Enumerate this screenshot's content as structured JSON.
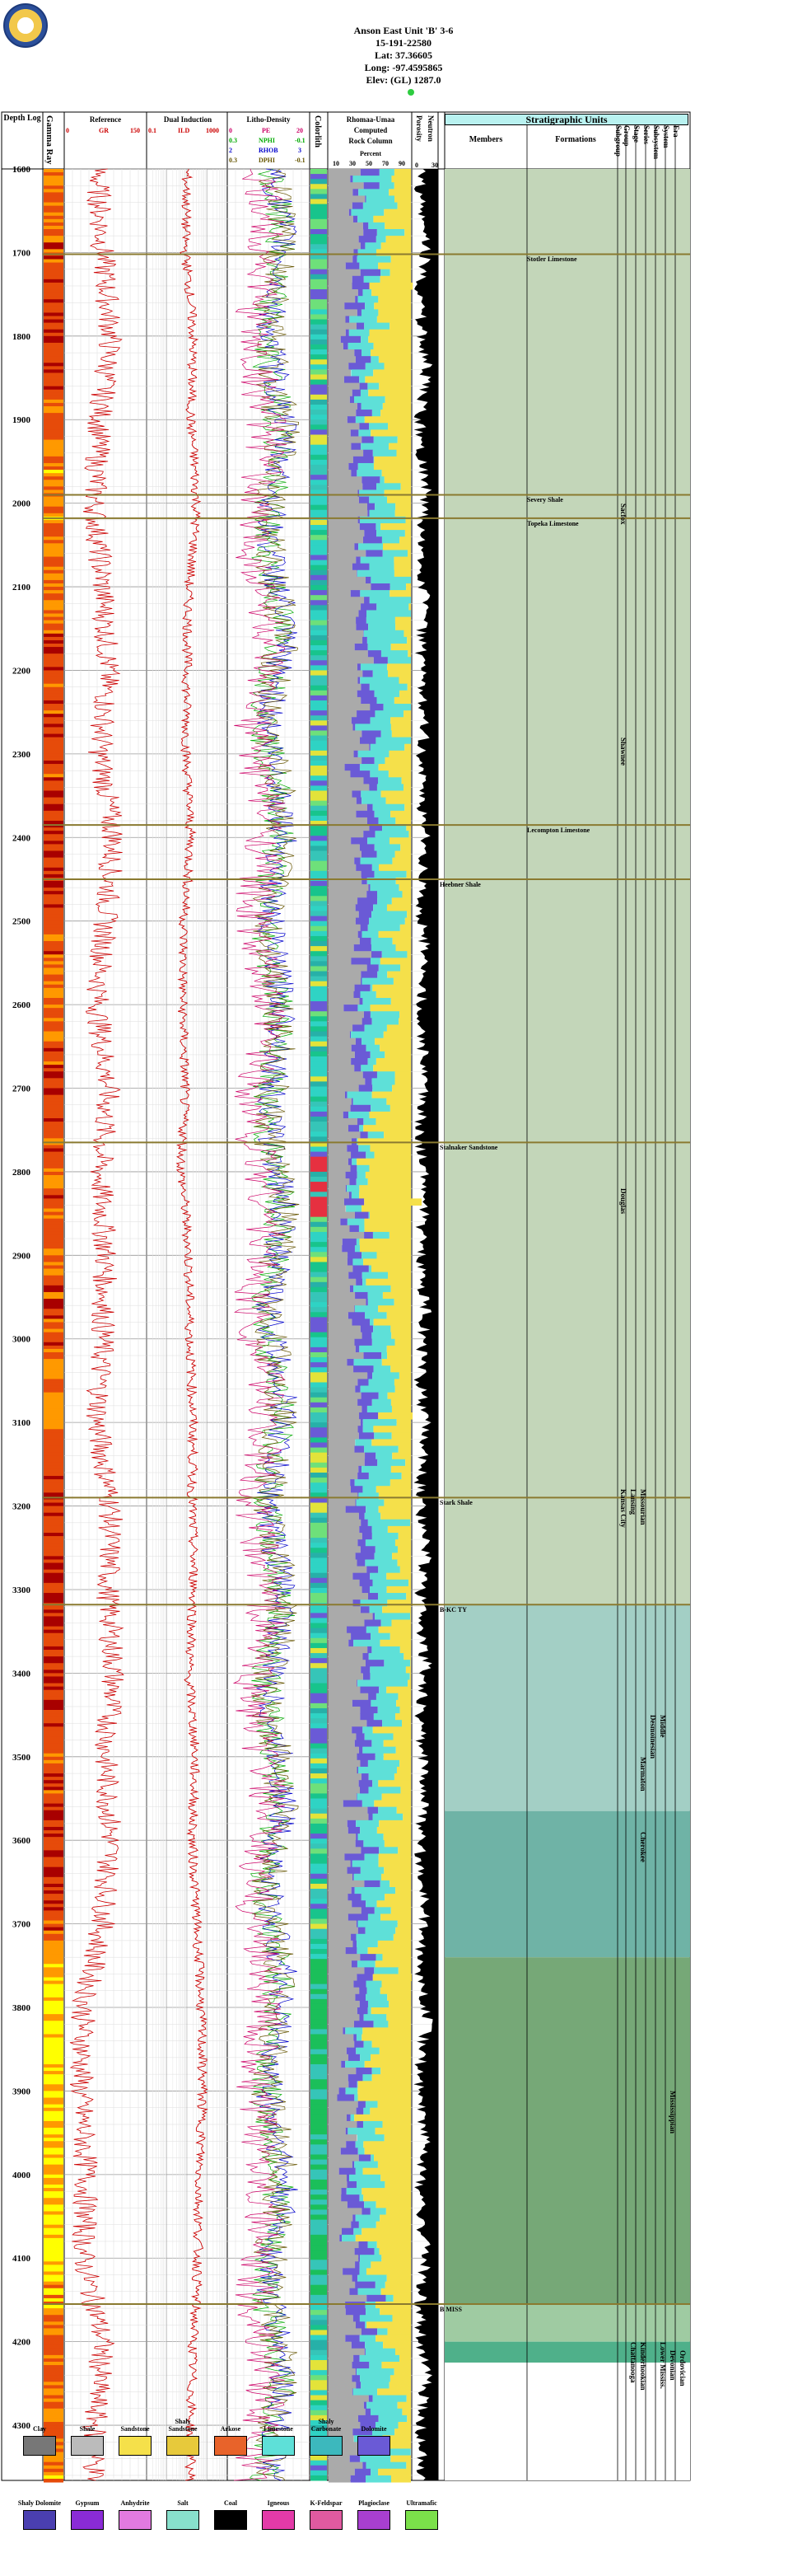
{
  "header": {
    "lines": [
      "Anson East Unit 'B' 3-6",
      "15-191-22580",
      "Lat: 37.36605",
      "Long: -97.4595865",
      "Elev: (GL) 1287.0"
    ]
  },
  "columns": {
    "depth": "Depth Log",
    "gamma": "Gamma Ray",
    "reference": "Reference",
    "gr_label": "GR",
    "gr_min": "0",
    "gr_max": "150",
    "dual_induction": "Dual Induction",
    "ild_label": "ILD",
    "ild_min": "0.1",
    "ild_max": "1000",
    "litho_density": "Litho-Density",
    "pe_label": "PE",
    "pe_min": "0",
    "pe_max": "20",
    "nphi_label": "NPHI",
    "nphi_min": "0.3",
    "nphi_max": "-0.1",
    "rhob_label": "RHOB",
    "rhob_min": "2",
    "rhob_max": "3",
    "dphi_label": "DPHI",
    "dphi_min": "0.3",
    "dphi_max": "-0.1",
    "colorlith": "Colorlith",
    "rhomaa": "Rhomaa-Umaa",
    "computed": "Computed",
    "rock_column": "Rock Column",
    "percent": "Percent",
    "pct_ticks": [
      "10",
      "30",
      "50",
      "70",
      "90"
    ],
    "porosity": "Porosity",
    "neutron": "Neutron",
    "porosity_ticks": [
      "0",
      "30"
    ],
    "strat_units": "Stratigraphic Units",
    "members": "Members",
    "formations": "Formations",
    "strat_cols": [
      "Subgroup",
      "Group",
      "Stage",
      "Series",
      "Subsystem",
      "System",
      "Era"
    ]
  },
  "formations": [
    {
      "name": "Stotler Limestone",
      "depth": 1702
    },
    {
      "name": "Severy Shale",
      "depth": 1990
    },
    {
      "name": "Topeka Limestone",
      "depth": 2018
    },
    {
      "name": "Lecompton Limestone",
      "depth": 2385
    },
    {
      "name": "Heebner Shale",
      "depth": 2450
    },
    {
      "name": "Stalnaker Sandstone",
      "depth": 2765
    },
    {
      "name": "Stark Shale",
      "depth": 3190
    },
    {
      "name": "B-KC TY",
      "depth": 3318
    },
    {
      "name": "B MISS",
      "depth": 4155
    }
  ],
  "strat_groups": [
    {
      "text": "Sacfox",
      "col": 0,
      "depth": 2000
    },
    {
      "text": "Shawnee",
      "col": 0,
      "depth": 2280
    },
    {
      "text": "Douglas",
      "col": 0,
      "depth": 2820
    },
    {
      "text": "Kansas City",
      "col": 0,
      "depth": 3180
    },
    {
      "text": "Lansing",
      "col": 1,
      "depth": 3180
    },
    {
      "text": "Missourian",
      "col": 2,
      "depth": 3180
    },
    {
      "text": "Marmaton",
      "col": 2,
      "depth": 3500
    },
    {
      "text": "Desmoinesian",
      "col": 3,
      "depth": 3450
    },
    {
      "text": "Middle",
      "col": 4,
      "depth": 3450
    },
    {
      "text": "Cherokee",
      "col": 2,
      "depth": 3590
    },
    {
      "text": "Mississippian",
      "col": 5,
      "depth": 3900
    },
    {
      "text": "Lower Mississ.",
      "col": 4,
      "depth": 4200
    },
    {
      "text": "Kinderhookian",
      "col": 2,
      "depth": 4200
    },
    {
      "text": "Chattanooga",
      "col": 1,
      "depth": 4200
    },
    {
      "text": "Devonian",
      "col": 5,
      "depth": 4210
    },
    {
      "text": "Ordovician",
      "col": 6,
      "depth": 4210
    }
  ],
  "chart_data": {
    "type": "well-log",
    "depth_range": [
      1600,
      4366
    ],
    "depth_ticks": [
      1600,
      1700,
      1800,
      1900,
      2000,
      2100,
      2200,
      2300,
      2400,
      2500,
      2600,
      2700,
      2800,
      2900,
      3000,
      3100,
      3200,
      3300,
      3400,
      3500,
      3600,
      3700,
      3800,
      3900,
      4000,
      4100,
      4200,
      4300
    ],
    "gr": {
      "min": 0,
      "max": 150,
      "depth": [
        1600,
        1700,
        1800,
        1900,
        2000,
        2100,
        2200,
        2300,
        2400,
        2500,
        2600,
        2700,
        2800,
        2900,
        3000,
        3100,
        3200,
        3300,
        3400,
        3500,
        3600,
        3700,
        3800,
        3900,
        4000,
        4100,
        4200,
        4300
      ],
      "values": [
        60,
        70,
        85,
        65,
        55,
        70,
        80,
        65,
        90,
        75,
        60,
        80,
        65,
        75,
        70,
        60,
        85,
        80,
        90,
        75,
        85,
        70,
        35,
        30,
        40,
        35,
        70,
        55
      ]
    },
    "ild": {
      "min": 0.1,
      "max": 1000,
      "depth": [
        1600,
        1700,
        1800,
        1900,
        2000,
        2100,
        2200,
        2300,
        2400,
        2500,
        2600,
        2700,
        2800,
        2900,
        3000,
        3100,
        3200,
        3300,
        3400,
        3500,
        3600,
        3700,
        3800,
        3900,
        4000,
        4100,
        4200,
        4300
      ],
      "values": [
        10,
        8,
        20,
        15,
        30,
        12,
        10,
        9,
        15,
        7,
        6,
        8,
        5,
        12,
        14,
        20,
        18,
        22,
        12,
        25,
        18,
        30,
        50,
        60,
        40,
        35,
        20,
        15
      ]
    },
    "rock_fraction_sandstone": {
      "depth": [
        1600,
        1700,
        1800,
        1900,
        2000,
        2100,
        2200,
        2300,
        2400,
        2500,
        2600,
        2700,
        2800,
        2900,
        3000,
        3100,
        3200,
        3300,
        3400,
        3500,
        3600,
        3700,
        3800,
        3900,
        4000,
        4100,
        4200,
        4300
      ],
      "values": [
        0.2,
        0.3,
        0.4,
        0.4,
        0.2,
        0.1,
        0.1,
        0.2,
        0.2,
        0.2,
        0.3,
        0.3,
        0.6,
        0.4,
        0.3,
        0.3,
        0.2,
        0.2,
        0.2,
        0.3,
        0.2,
        0.3,
        0.4,
        0.5,
        0.5,
        0.5,
        0.3,
        0.2
      ]
    }
  },
  "legend": {
    "row1": [
      {
        "label": "Clay",
        "color": "#777777"
      },
      {
        "label": "Shale",
        "color": "#bbbbbb"
      },
      {
        "label": "Sandstone",
        "color": "#f5e04a"
      },
      {
        "label": "Shaly Sandstone",
        "color": "#e7c93b"
      },
      {
        "label": "Arkose",
        "color": "#e8632a"
      },
      {
        "label": "Limestone",
        "color": "#5ee0d8"
      },
      {
        "label": "Shaly Carbonate",
        "color": "#3cb8bd"
      },
      {
        "label": "Dolomite",
        "color": "#6a5ad6"
      }
    ],
    "row2": [
      {
        "label": "Shaly Dolomite",
        "color": "#4a3fb0"
      },
      {
        "label": "Gypsum",
        "color": "#8a2bd6"
      },
      {
        "label": "Anhydrite",
        "color": "#e27ae0"
      },
      {
        "label": "Salt",
        "color": "#88e0cc"
      },
      {
        "label": "Coal",
        "color": "#000000"
      },
      {
        "label": "Igneous",
        "color": "#e33aa8"
      },
      {
        "label": "K-Feldspar",
        "color": "#e05aa0"
      },
      {
        "label": "Plagioclase",
        "color": "#a83fd0"
      },
      {
        "label": "Ultramafic",
        "color": "#7be04a"
      }
    ]
  }
}
